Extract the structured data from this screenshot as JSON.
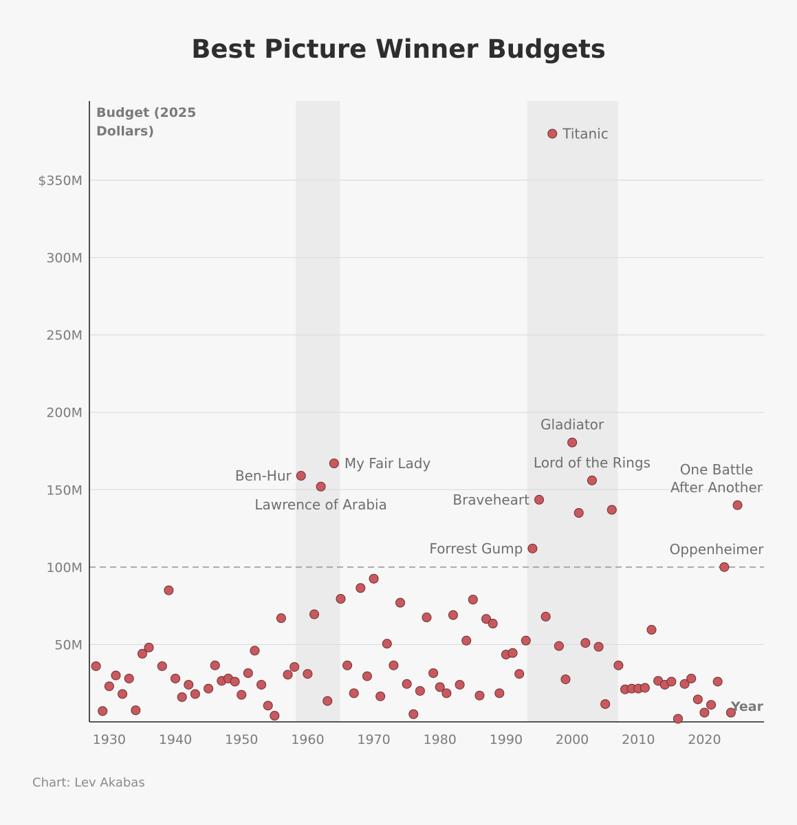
{
  "title": "Best Picture Winner Budgets",
  "credit": "Chart: Lev Akabas",
  "colors": {
    "point": "#c8595e",
    "point_stroke": "#6e2d31",
    "shade": "#ebebeb"
  },
  "chart_data": {
    "type": "scatter",
    "title": "Best Picture Winner Budgets",
    "ylabel": "Budget (2025 Dollars)",
    "ylabel_lines": [
      "Budget (2025",
      "Dollars)"
    ],
    "xlabel": "Year",
    "xlim": [
      1927,
      2029
    ],
    "ylim": [
      0,
      400
    ],
    "y_unit": "M",
    "x_ticks": [
      1930,
      1940,
      1950,
      1960,
      1970,
      1980,
      1990,
      2000,
      2010,
      2020
    ],
    "y_ticks": [
      {
        "value": 50,
        "label": "50M"
      },
      {
        "value": 100,
        "label": "100M"
      },
      {
        "value": 150,
        "label": "150M"
      },
      {
        "value": 200,
        "label": "200M"
      },
      {
        "value": 250,
        "label": "250M"
      },
      {
        "value": 300,
        "label": "300M"
      },
      {
        "value": 350,
        "label": "$350M"
      }
    ],
    "reference_line": {
      "y": 100,
      "style": "dashed"
    },
    "shaded_ranges": [
      [
        1958.2,
        1964.9
      ],
      [
        1993.2,
        2006.9
      ]
    ],
    "points": [
      {
        "x": 1928,
        "y": 36
      },
      {
        "x": 1929,
        "y": 7
      },
      {
        "x": 1930,
        "y": 23
      },
      {
        "x": 1931,
        "y": 30
      },
      {
        "x": 1932,
        "y": 18
      },
      {
        "x": 1933,
        "y": 28
      },
      {
        "x": 1934,
        "y": 7.5
      },
      {
        "x": 1935,
        "y": 44
      },
      {
        "x": 1936,
        "y": 48
      },
      {
        "x": 1938,
        "y": 36
      },
      {
        "x": 1939,
        "y": 85
      },
      {
        "x": 1940,
        "y": 28
      },
      {
        "x": 1941,
        "y": 16
      },
      {
        "x": 1942,
        "y": 24
      },
      {
        "x": 1943,
        "y": 18
      },
      {
        "x": 1945,
        "y": 21.5
      },
      {
        "x": 1946,
        "y": 36.5
      },
      {
        "x": 1947,
        "y": 26.5
      },
      {
        "x": 1948,
        "y": 28
      },
      {
        "x": 1949,
        "y": 26
      },
      {
        "x": 1950,
        "y": 17.5
      },
      {
        "x": 1951,
        "y": 31.5
      },
      {
        "x": 1952,
        "y": 46
      },
      {
        "x": 1953,
        "y": 24
      },
      {
        "x": 1954,
        "y": 10.5
      },
      {
        "x": 1955,
        "y": 4
      },
      {
        "x": 1956,
        "y": 67
      },
      {
        "x": 1957,
        "y": 30.5
      },
      {
        "x": 1958,
        "y": 35.5
      },
      {
        "x": 1959,
        "y": 159
      },
      {
        "x": 1960,
        "y": 31
      },
      {
        "x": 1961,
        "y": 69.5
      },
      {
        "x": 1962,
        "y": 152
      },
      {
        "x": 1963,
        "y": 13.5
      },
      {
        "x": 1964,
        "y": 167
      },
      {
        "x": 1965,
        "y": 79.5
      },
      {
        "x": 1966,
        "y": 36.5
      },
      {
        "x": 1967,
        "y": 18.5
      },
      {
        "x": 1968,
        "y": 86.5
      },
      {
        "x": 1969,
        "y": 29.5
      },
      {
        "x": 1970,
        "y": 92.5
      },
      {
        "x": 1971,
        "y": 16.5
      },
      {
        "x": 1972,
        "y": 50.5
      },
      {
        "x": 1973,
        "y": 36.5
      },
      {
        "x": 1974,
        "y": 77
      },
      {
        "x": 1975,
        "y": 24.5
      },
      {
        "x": 1976,
        "y": 5
      },
      {
        "x": 1977,
        "y": 20
      },
      {
        "x": 1978,
        "y": 67.5
      },
      {
        "x": 1979,
        "y": 31.5
      },
      {
        "x": 1980,
        "y": 22.5
      },
      {
        "x": 1981,
        "y": 18.5
      },
      {
        "x": 1982,
        "y": 69
      },
      {
        "x": 1983,
        "y": 24
      },
      {
        "x": 1984,
        "y": 52.5
      },
      {
        "x": 1985,
        "y": 79
      },
      {
        "x": 1986,
        "y": 17
      },
      {
        "x": 1987,
        "y": 66.5
      },
      {
        "x": 1988,
        "y": 63.5
      },
      {
        "x": 1989,
        "y": 18.5
      },
      {
        "x": 1990,
        "y": 43.5
      },
      {
        "x": 1991,
        "y": 44.5
      },
      {
        "x": 1992,
        "y": 31
      },
      {
        "x": 1993,
        "y": 52.5
      },
      {
        "x": 1994,
        "y": 112
      },
      {
        "x": 1995,
        "y": 143.5
      },
      {
        "x": 1996,
        "y": 68
      },
      {
        "x": 1997,
        "y": 380
      },
      {
        "x": 1998,
        "y": 49
      },
      {
        "x": 1999,
        "y": 27.5
      },
      {
        "x": 2000,
        "y": 180.5
      },
      {
        "x": 2001,
        "y": 135
      },
      {
        "x": 2002,
        "y": 51
      },
      {
        "x": 2003,
        "y": 156
      },
      {
        "x": 2004,
        "y": 48.5
      },
      {
        "x": 2005,
        "y": 11.5
      },
      {
        "x": 2006,
        "y": 137
      },
      {
        "x": 2007,
        "y": 36.5
      },
      {
        "x": 2008,
        "y": 21
      },
      {
        "x": 2009,
        "y": 21.5
      },
      {
        "x": 2010,
        "y": 21.5
      },
      {
        "x": 2011,
        "y": 22
      },
      {
        "x": 2012,
        "y": 59.5
      },
      {
        "x": 2013,
        "y": 26.5
      },
      {
        "x": 2014,
        "y": 24
      },
      {
        "x": 2015,
        "y": 26
      },
      {
        "x": 2016,
        "y": 2
      },
      {
        "x": 2017,
        "y": 24.5
      },
      {
        "x": 2018,
        "y": 28
      },
      {
        "x": 2019,
        "y": 14.5
      },
      {
        "x": 2020,
        "y": 6
      },
      {
        "x": 2021,
        "y": 11
      },
      {
        "x": 2022,
        "y": 26
      },
      {
        "x": 2023,
        "y": 100
      },
      {
        "x": 2024,
        "y": 6
      },
      {
        "x": 2025,
        "y": 140
      }
    ],
    "annotations": [
      {
        "lines": [
          "Titanic"
        ],
        "x": 1997,
        "y": 380,
        "position": "right"
      },
      {
        "lines": [
          "Ben-Hur"
        ],
        "x": 1959,
        "y": 159,
        "position": "left"
      },
      {
        "lines": [
          "My Fair Lady"
        ],
        "x": 1964,
        "y": 167,
        "position": "right"
      },
      {
        "lines": [
          "Lawrence of Arabia"
        ],
        "x": 1962,
        "y": 152,
        "position": "below"
      },
      {
        "lines": [
          "Gladiator"
        ],
        "x": 2000,
        "y": 180.5,
        "position": "above"
      },
      {
        "lines": [
          "Lord of the Rings"
        ],
        "x": 2003,
        "y": 156,
        "position": "above"
      },
      {
        "lines": [
          "Braveheart"
        ],
        "x": 1995,
        "y": 143.5,
        "position": "left"
      },
      {
        "lines": [
          "Forrest Gump"
        ],
        "x": 1994,
        "y": 112,
        "position": "left"
      },
      {
        "lines": [
          "One Battle",
          "After Another"
        ],
        "x": 2025,
        "y": 140,
        "position": "above"
      },
      {
        "lines": [
          "Oppenheimer"
        ],
        "x": 2023,
        "y": 100,
        "position": "above"
      }
    ]
  }
}
